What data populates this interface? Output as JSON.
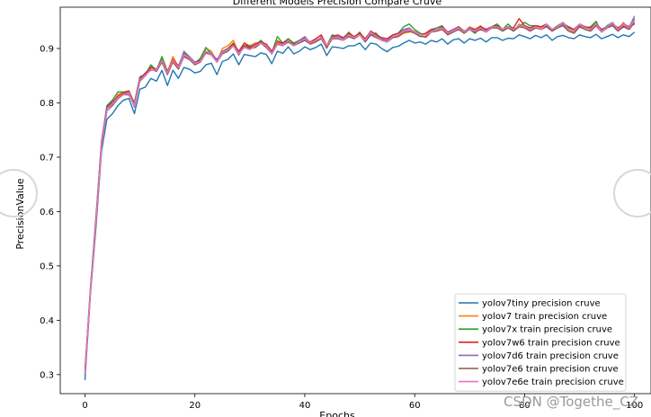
{
  "chart_data": {
    "type": "line",
    "title": "Different Models Precision Compare Cruve",
    "xlabel": "Epochs",
    "ylabel": "PrecisionValue",
    "xlim": [
      -4.5,
      103
    ],
    "ylim": [
      0.265,
      0.976
    ],
    "xticks": [
      0,
      20,
      40,
      60,
      80,
      100
    ],
    "yticks": [
      0.3,
      0.4,
      0.5,
      0.6,
      0.7,
      0.8,
      0.9
    ],
    "grid": false,
    "legend_position": "lower-right",
    "x": [
      0,
      1,
      2,
      3,
      4,
      5,
      6,
      7,
      8,
      9,
      10,
      11,
      12,
      13,
      14,
      15,
      16,
      17,
      18,
      19,
      20,
      21,
      22,
      23,
      24,
      25,
      26,
      27,
      28,
      29,
      30,
      31,
      32,
      33,
      34,
      35,
      36,
      37,
      38,
      39,
      40,
      41,
      42,
      43,
      44,
      45,
      46,
      47,
      48,
      49,
      50,
      51,
      52,
      53,
      54,
      55,
      56,
      57,
      58,
      59,
      60,
      61,
      62,
      63,
      64,
      65,
      66,
      67,
      68,
      69,
      70,
      71,
      72,
      73,
      74,
      75,
      76,
      77,
      78,
      79,
      80,
      81,
      82,
      83,
      84,
      85,
      86,
      87,
      88,
      89,
      90,
      91,
      92,
      93,
      94,
      95,
      96,
      97,
      98,
      99,
      100
    ],
    "series": [
      {
        "name": "yolov7tiny precision cruve",
        "color": "#1f77b4",
        "values": [
          0.29,
          0.45,
          0.57,
          0.71,
          0.77,
          0.78,
          0.795,
          0.805,
          0.808,
          0.78,
          0.825,
          0.829,
          0.845,
          0.84,
          0.86,
          0.832,
          0.86,
          0.845,
          0.865,
          0.862,
          0.855,
          0.858,
          0.87,
          0.873,
          0.852,
          0.876,
          0.88,
          0.89,
          0.87,
          0.889,
          0.887,
          0.885,
          0.892,
          0.889,
          0.872,
          0.895,
          0.891,
          0.903,
          0.89,
          0.895,
          0.903,
          0.898,
          0.902,
          0.908,
          0.887,
          0.903,
          0.902,
          0.9,
          0.905,
          0.905,
          0.91,
          0.898,
          0.91,
          0.908,
          0.9,
          0.894,
          0.902,
          0.904,
          0.91,
          0.915,
          0.91,
          0.912,
          0.908,
          0.915,
          0.912,
          0.918,
          0.908,
          0.916,
          0.918,
          0.91,
          0.918,
          0.915,
          0.919,
          0.912,
          0.92,
          0.92,
          0.915,
          0.919,
          0.918,
          0.925,
          0.922,
          0.918,
          0.924,
          0.92,
          0.925,
          0.915,
          0.922,
          0.924,
          0.92,
          0.918,
          0.925,
          0.922,
          0.92,
          0.926,
          0.918,
          0.922,
          0.926,
          0.92,
          0.925,
          0.922,
          0.93
        ]
      },
      {
        "name": "yolov7 train precision cruve",
        "color": "#ff7f0e",
        "values": [
          0.3,
          0.46,
          0.58,
          0.72,
          0.79,
          0.8,
          0.815,
          0.82,
          0.822,
          0.795,
          0.845,
          0.85,
          0.868,
          0.86,
          0.882,
          0.855,
          0.885,
          0.865,
          0.89,
          0.882,
          0.875,
          0.878,
          0.9,
          0.895,
          0.875,
          0.9,
          0.905,
          0.915,
          0.89,
          0.91,
          0.905,
          0.91,
          0.912,
          0.905,
          0.89,
          0.915,
          0.91,
          0.918,
          0.905,
          0.912,
          0.915,
          0.912,
          0.915,
          0.92,
          0.9,
          0.922,
          0.92,
          0.918,
          0.925,
          0.92,
          0.928,
          0.915,
          0.93,
          0.925,
          0.918,
          0.912,
          0.92,
          0.922,
          0.928,
          0.93,
          0.932,
          0.925,
          0.92,
          0.93,
          0.935,
          0.938,
          0.925,
          0.935,
          0.938,
          0.93,
          0.94,
          0.935,
          0.942,
          0.932,
          0.94,
          0.94,
          0.935,
          0.94,
          0.932,
          0.945,
          0.94,
          0.935,
          0.94,
          0.938,
          0.942,
          0.932,
          0.94,
          0.945,
          0.935,
          0.93,
          0.945,
          0.94,
          0.935,
          0.948,
          0.932,
          0.94,
          0.945,
          0.935,
          0.948,
          0.935,
          0.952
        ]
      },
      {
        "name": "yolov7x train precision cruve",
        "color": "#2ca02c",
        "values": [
          0.305,
          0.46,
          0.59,
          0.725,
          0.795,
          0.805,
          0.82,
          0.82,
          0.82,
          0.8,
          0.848,
          0.852,
          0.87,
          0.86,
          0.885,
          0.858,
          0.878,
          0.868,
          0.892,
          0.885,
          0.872,
          0.882,
          0.902,
          0.89,
          0.878,
          0.895,
          0.9,
          0.91,
          0.892,
          0.905,
          0.905,
          0.905,
          0.915,
          0.905,
          0.892,
          0.922,
          0.91,
          0.918,
          0.91,
          0.915,
          0.92,
          0.91,
          0.912,
          0.922,
          0.905,
          0.925,
          0.922,
          0.918,
          0.93,
          0.92,
          0.93,
          0.915,
          0.928,
          0.928,
          0.915,
          0.915,
          0.925,
          0.928,
          0.94,
          0.945,
          0.935,
          0.928,
          0.925,
          0.935,
          0.938,
          0.942,
          0.928,
          0.932,
          0.94,
          0.932,
          0.935,
          0.928,
          0.94,
          0.935,
          0.94,
          0.945,
          0.935,
          0.945,
          0.935,
          0.94,
          0.948,
          0.942,
          0.942,
          0.94,
          0.945,
          0.935,
          0.942,
          0.948,
          0.938,
          0.935,
          0.942,
          0.938,
          0.94,
          0.95,
          0.93,
          0.942,
          0.948,
          0.935,
          0.945,
          0.94,
          0.955
        ]
      },
      {
        "name": "yolov7w6 train precision cruve",
        "color": "#d62728",
        "values": [
          0.31,
          0.455,
          0.585,
          0.728,
          0.792,
          0.802,
          0.812,
          0.818,
          0.822,
          0.798,
          0.845,
          0.855,
          0.865,
          0.862,
          0.878,
          0.858,
          0.88,
          0.868,
          0.885,
          0.88,
          0.875,
          0.878,
          0.895,
          0.89,
          0.88,
          0.892,
          0.9,
          0.908,
          0.895,
          0.91,
          0.902,
          0.908,
          0.912,
          0.908,
          0.895,
          0.912,
          0.91,
          0.915,
          0.908,
          0.912,
          0.918,
          0.912,
          0.918,
          0.925,
          0.905,
          0.922,
          0.925,
          0.92,
          0.928,
          0.922,
          0.928,
          0.918,
          0.932,
          0.925,
          0.92,
          0.918,
          0.925,
          0.928,
          0.935,
          0.935,
          0.93,
          0.925,
          0.928,
          0.935,
          0.935,
          0.94,
          0.93,
          0.935,
          0.94,
          0.93,
          0.938,
          0.935,
          0.94,
          0.935,
          0.94,
          0.942,
          0.935,
          0.94,
          0.938,
          0.955,
          0.942,
          0.938,
          0.942,
          0.94,
          0.945,
          0.935,
          0.94,
          0.945,
          0.94,
          0.935,
          0.945,
          0.94,
          0.938,
          0.945,
          0.935,
          0.94,
          0.945,
          0.938,
          0.945,
          0.94,
          0.945
        ]
      },
      {
        "name": "yolov7d6 train precision cruve",
        "color": "#9467bd",
        "values": [
          0.3,
          0.455,
          0.58,
          0.725,
          0.79,
          0.8,
          0.81,
          0.815,
          0.82,
          0.792,
          0.843,
          0.852,
          0.86,
          0.862,
          0.875,
          0.856,
          0.875,
          0.865,
          0.895,
          0.885,
          0.875,
          0.875,
          0.895,
          0.89,
          0.878,
          0.895,
          0.898,
          0.905,
          0.892,
          0.905,
          0.9,
          0.905,
          0.91,
          0.905,
          0.892,
          0.91,
          0.908,
          0.912,
          0.905,
          0.915,
          0.922,
          0.91,
          0.915,
          0.92,
          0.905,
          0.92,
          0.922,
          0.918,
          0.925,
          0.92,
          0.925,
          0.915,
          0.928,
          0.922,
          0.918,
          0.915,
          0.922,
          0.925,
          0.935,
          0.938,
          0.93,
          0.925,
          0.925,
          0.932,
          0.935,
          0.938,
          0.928,
          0.935,
          0.938,
          0.93,
          0.938,
          0.932,
          0.938,
          0.932,
          0.94,
          0.94,
          0.935,
          0.94,
          0.935,
          0.942,
          0.94,
          0.935,
          0.94,
          0.935,
          0.942,
          0.935,
          0.94,
          0.945,
          0.935,
          0.932,
          0.942,
          0.938,
          0.935,
          0.945,
          0.932,
          0.94,
          0.945,
          0.935,
          0.942,
          0.938,
          0.96
        ]
      },
      {
        "name": "yolov7e6 train precision cruve",
        "color": "#8c564b",
        "values": [
          0.3,
          0.45,
          0.575,
          0.72,
          0.785,
          0.795,
          0.808,
          0.815,
          0.815,
          0.795,
          0.84,
          0.85,
          0.862,
          0.858,
          0.875,
          0.852,
          0.875,
          0.862,
          0.885,
          0.88,
          0.87,
          0.875,
          0.892,
          0.888,
          0.875,
          0.89,
          0.895,
          0.905,
          0.888,
          0.905,
          0.9,
          0.902,
          0.91,
          0.902,
          0.89,
          0.908,
          0.905,
          0.912,
          0.905,
          0.91,
          0.915,
          0.908,
          0.912,
          0.918,
          0.902,
          0.918,
          0.918,
          0.915,
          0.922,
          0.918,
          0.925,
          0.912,
          0.925,
          0.92,
          0.915,
          0.912,
          0.92,
          0.922,
          0.93,
          0.932,
          0.928,
          0.922,
          0.922,
          0.93,
          0.932,
          0.935,
          0.925,
          0.93,
          0.935,
          0.928,
          0.935,
          0.93,
          0.935,
          0.93,
          0.938,
          0.938,
          0.932,
          0.938,
          0.932,
          0.94,
          0.938,
          0.932,
          0.938,
          0.935,
          0.94,
          0.932,
          0.938,
          0.942,
          0.932,
          0.928,
          0.94,
          0.935,
          0.932,
          0.942,
          0.93,
          0.938,
          0.942,
          0.932,
          0.94,
          0.935,
          0.948
        ]
      },
      {
        "name": "yolov7e6e train precision cruve",
        "color": "#e377c2",
        "values": [
          0.3,
          0.455,
          0.58,
          0.72,
          0.785,
          0.798,
          0.81,
          0.815,
          0.818,
          0.795,
          0.842,
          0.85,
          0.862,
          0.86,
          0.878,
          0.855,
          0.878,
          0.865,
          0.888,
          0.882,
          0.872,
          0.876,
          0.895,
          0.888,
          0.875,
          0.892,
          0.898,
          0.905,
          0.89,
          0.902,
          0.898,
          0.905,
          0.91,
          0.905,
          0.89,
          0.91,
          0.905,
          0.915,
          0.905,
          0.912,
          0.918,
          0.91,
          0.915,
          0.92,
          0.905,
          0.92,
          0.92,
          0.915,
          0.925,
          0.92,
          0.925,
          0.915,
          0.93,
          0.922,
          0.915,
          0.912,
          0.922,
          0.925,
          0.932,
          0.935,
          0.93,
          0.925,
          0.925,
          0.93,
          0.935,
          0.938,
          0.928,
          0.932,
          0.938,
          0.93,
          0.935,
          0.932,
          0.938,
          0.93,
          0.94,
          0.94,
          0.935,
          0.94,
          0.935,
          0.942,
          0.94,
          0.935,
          0.94,
          0.935,
          0.945,
          0.935,
          0.94,
          0.948,
          0.935,
          0.932,
          0.945,
          0.938,
          0.935,
          0.945,
          0.93,
          0.94,
          0.948,
          0.935,
          0.945,
          0.938,
          0.952
        ]
      }
    ]
  },
  "watermark": {
    "text": "CSDN @Togethe_CZ"
  }
}
